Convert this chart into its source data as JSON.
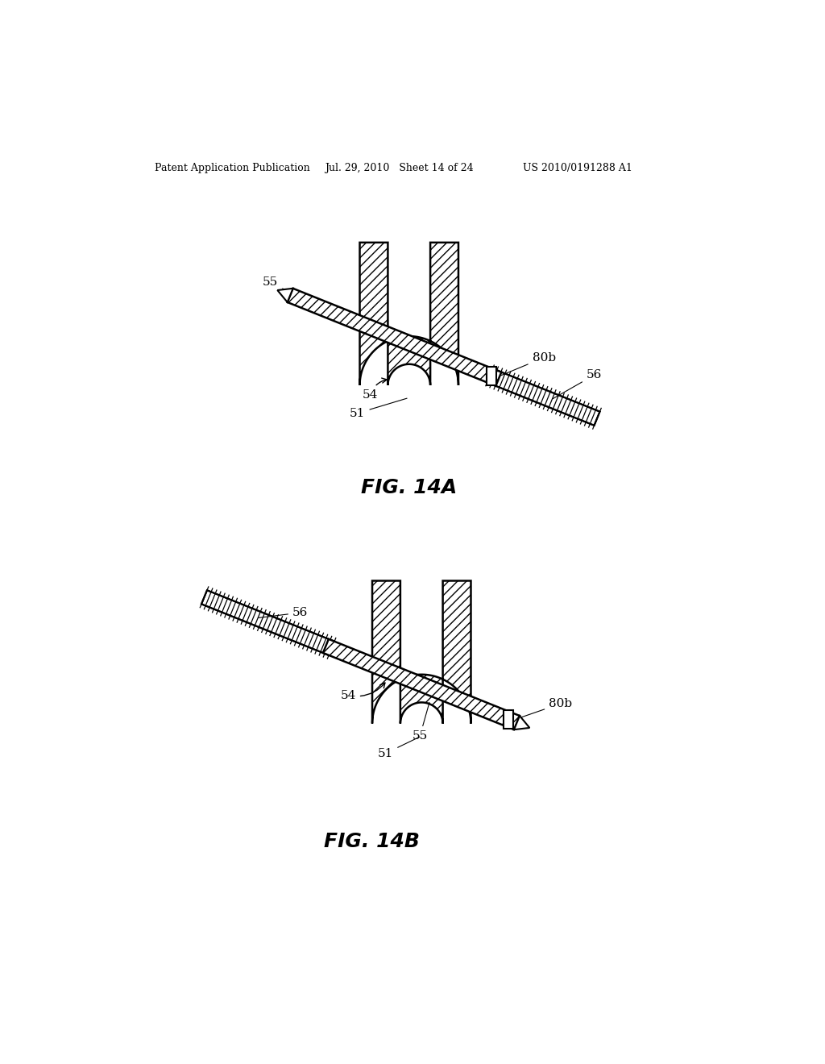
{
  "bg_color": "#ffffff",
  "header_left": "Patent Application Publication",
  "header_mid": "Jul. 29, 2010   Sheet 14 of 24",
  "header_right": "US 2010/0191288 A1",
  "fig1_title": "FIG. 14A",
  "fig2_title": "FIG. 14B"
}
